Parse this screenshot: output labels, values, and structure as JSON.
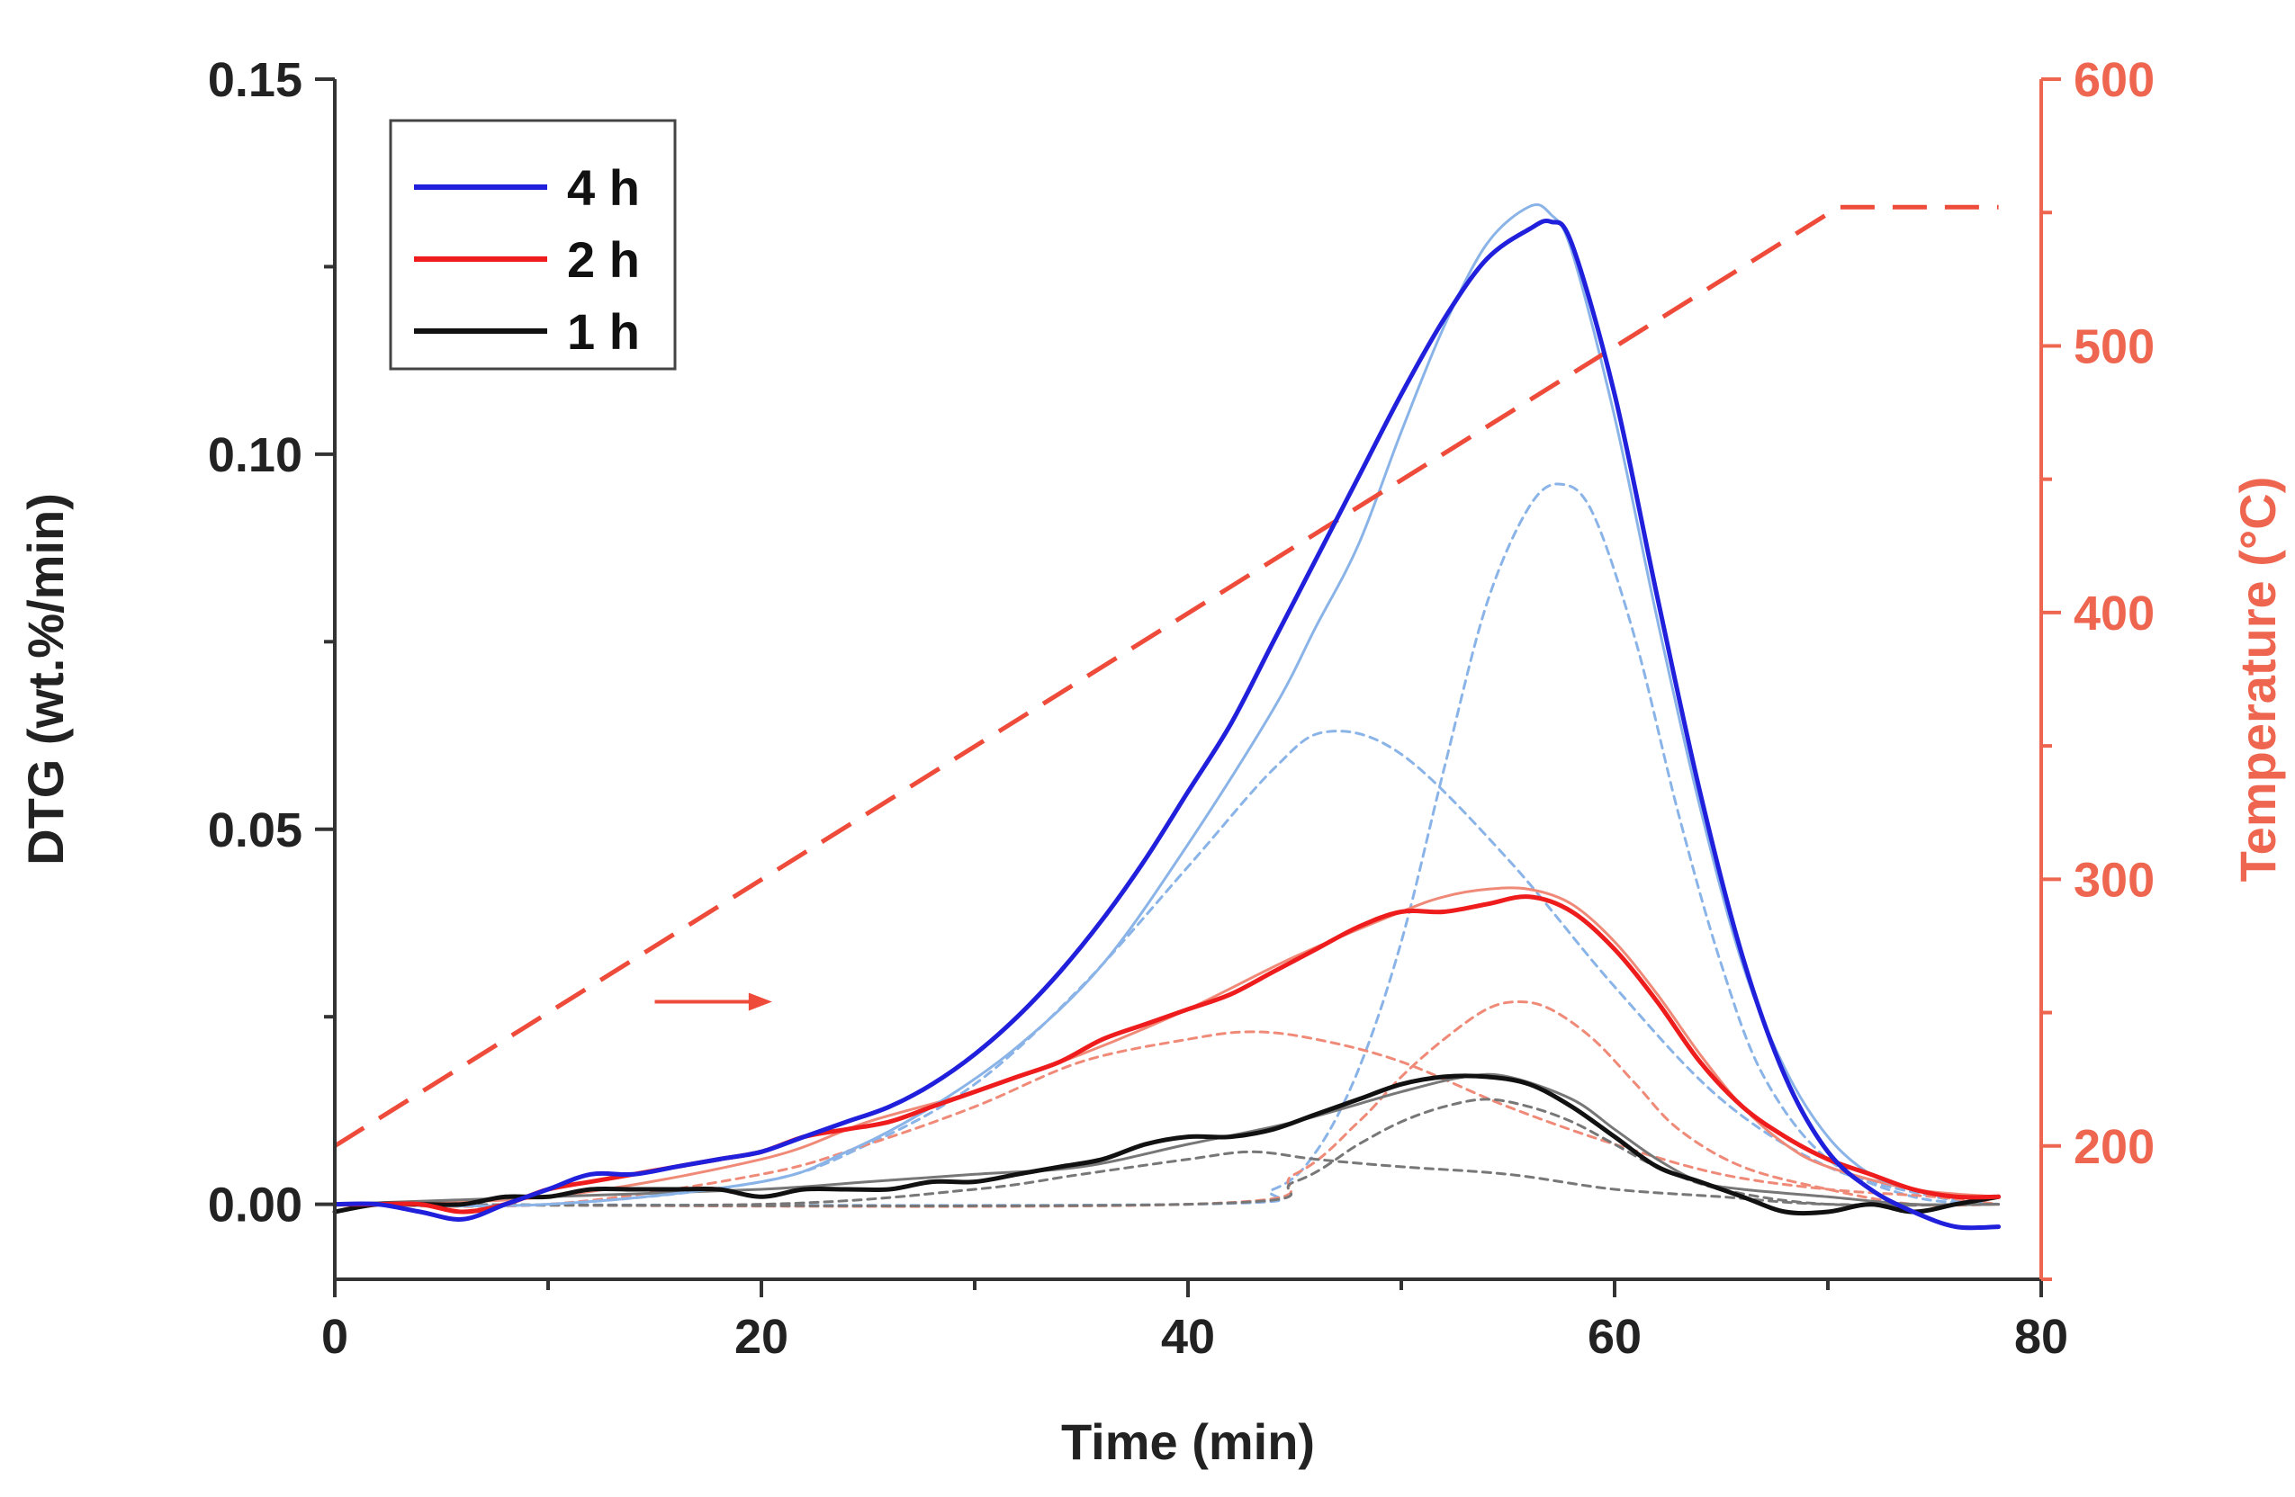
{
  "chart_data": {
    "type": "line",
    "xlabel": "Time (min)",
    "ylabel": "DTG (wt.%/min)",
    "y2label": "Temperature (°C)",
    "xlim": [
      0,
      80
    ],
    "ylim": [
      -0.01,
      0.15
    ],
    "y2lim": [
      150,
      600
    ],
    "x_ticks": [
      0,
      20,
      40,
      60,
      80
    ],
    "y_ticks": [
      0.0,
      0.05,
      0.1,
      0.15
    ],
    "y_tick_labels": [
      "0.00",
      "0.05",
      "0.10",
      "0.15"
    ],
    "y2_ticks": [
      200,
      300,
      400,
      500,
      600
    ],
    "y2_tick_labels": [
      "200",
      "300",
      "400",
      "500",
      "600"
    ],
    "legend": {
      "position": "top-left",
      "entries": [
        {
          "label": "4 h",
          "color": "#1f1fdc"
        },
        {
          "label": "2 h",
          "color": "#ee1c1c"
        },
        {
          "label": "1 h",
          "color": "#111111"
        }
      ]
    },
    "colors": {
      "blue": "#1f1fdc",
      "red": "#ee1c1c",
      "black": "#111111",
      "blue_fit": "#8ab4e8",
      "red_fit": "#f08a78",
      "black_fit": "#777777",
      "temp": "#ee4b3a",
      "axis": "#333333",
      "axis2": "#ee6650"
    },
    "series": [
      {
        "name": "4 h",
        "axis": "left",
        "style": "solid",
        "x": [
          0,
          2,
          4,
          6,
          8,
          10,
          12,
          14,
          16,
          18,
          20,
          22,
          24,
          26,
          28,
          30,
          32,
          34,
          36,
          38,
          40,
          42,
          44,
          46,
          48,
          50,
          52,
          54,
          56,
          57,
          58,
          60,
          62,
          64,
          66,
          68,
          70,
          72,
          74,
          76,
          78
        ],
        "y": [
          0.0,
          0.0,
          -0.001,
          -0.002,
          0.0,
          0.002,
          0.004,
          0.004,
          0.005,
          0.006,
          0.007,
          0.009,
          0.011,
          0.013,
          0.016,
          0.02,
          0.025,
          0.031,
          0.038,
          0.046,
          0.055,
          0.064,
          0.075,
          0.086,
          0.097,
          0.108,
          0.118,
          0.126,
          0.13,
          0.131,
          0.128,
          0.108,
          0.081,
          0.055,
          0.033,
          0.017,
          0.007,
          0.002,
          -0.001,
          -0.003,
          -0.003
        ]
      },
      {
        "name": "2 h",
        "axis": "left",
        "style": "solid",
        "x": [
          0,
          2,
          4,
          6,
          8,
          10,
          12,
          14,
          16,
          18,
          20,
          22,
          24,
          26,
          28,
          30,
          32,
          34,
          36,
          38,
          40,
          42,
          44,
          46,
          48,
          50,
          52,
          54,
          56,
          58,
          60,
          62,
          64,
          66,
          68,
          70,
          72,
          74,
          76,
          78
        ],
        "y": [
          0.0,
          0.0,
          0.0,
          -0.001,
          0.0,
          0.002,
          0.003,
          0.004,
          0.005,
          0.006,
          0.007,
          0.009,
          0.01,
          0.011,
          0.013,
          0.015,
          0.017,
          0.019,
          0.022,
          0.024,
          0.026,
          0.028,
          0.031,
          0.034,
          0.037,
          0.039,
          0.039,
          0.04,
          0.041,
          0.039,
          0.034,
          0.027,
          0.019,
          0.013,
          0.009,
          0.006,
          0.004,
          0.002,
          0.001,
          0.001
        ]
      },
      {
        "name": "1 h",
        "axis": "left",
        "style": "solid",
        "x": [
          0,
          2,
          4,
          6,
          8,
          10,
          12,
          14,
          16,
          18,
          20,
          22,
          24,
          26,
          28,
          30,
          32,
          34,
          36,
          38,
          40,
          42,
          44,
          46,
          48,
          50,
          52,
          54,
          56,
          58,
          60,
          62,
          64,
          66,
          68,
          70,
          72,
          74,
          76,
          78
        ],
        "y": [
          -0.001,
          0.0,
          0.0,
          0.0,
          0.001,
          0.001,
          0.002,
          0.002,
          0.002,
          0.002,
          0.001,
          0.002,
          0.002,
          0.002,
          0.003,
          0.003,
          0.004,
          0.005,
          0.006,
          0.008,
          0.009,
          0.009,
          0.01,
          0.012,
          0.014,
          0.016,
          0.017,
          0.017,
          0.016,
          0.013,
          0.009,
          0.005,
          0.003,
          0.001,
          -0.001,
          -0.001,
          0.0,
          -0.001,
          0.0,
          0.001
        ]
      },
      {
        "name": "4 h fit",
        "axis": "left",
        "style": "fit-blue",
        "x": [
          0,
          10,
          20,
          24,
          28,
          32,
          36,
          40,
          44,
          46,
          48,
          50,
          52,
          54,
          56,
          57,
          58,
          60,
          62,
          64,
          66,
          68,
          70,
          72,
          74,
          76,
          78
        ],
        "y": [
          0.0,
          0.0,
          0.003,
          0.007,
          0.013,
          0.021,
          0.032,
          0.048,
          0.066,
          0.077,
          0.088,
          0.103,
          0.117,
          0.128,
          0.133,
          0.132,
          0.127,
          0.105,
          0.078,
          0.053,
          0.032,
          0.018,
          0.009,
          0.004,
          0.002,
          0.001,
          0.001
        ]
      },
      {
        "name": "2 h fit",
        "axis": "left",
        "style": "fit-red",
        "x": [
          0,
          10,
          20,
          25,
          30,
          35,
          40,
          45,
          50,
          52,
          54,
          56,
          58,
          60,
          62,
          64,
          66,
          68,
          70,
          74,
          78
        ],
        "y": [
          0.0,
          0.001,
          0.006,
          0.011,
          0.015,
          0.02,
          0.026,
          0.033,
          0.039,
          0.041,
          0.042,
          0.042,
          0.04,
          0.035,
          0.028,
          0.02,
          0.013,
          0.008,
          0.005,
          0.002,
          0.001
        ]
      },
      {
        "name": "1 h fit",
        "axis": "left",
        "style": "fit-black",
        "x": [
          0,
          10,
          20,
          25,
          30,
          35,
          40,
          45,
          50,
          53,
          55,
          58,
          60,
          62,
          64,
          66,
          70,
          74,
          78
        ],
        "y": [
          0.0,
          0.001,
          0.002,
          0.003,
          0.004,
          0.005,
          0.008,
          0.011,
          0.015,
          0.017,
          0.017,
          0.014,
          0.01,
          0.006,
          0.003,
          0.002,
          0.001,
          0.0,
          0.0
        ]
      },
      {
        "name": "4 h component 1",
        "axis": "left",
        "style": "dot-blue",
        "x": [
          0,
          10,
          20,
          25,
          30,
          35,
          40,
          44,
          46.5,
          50,
          55,
          60,
          65,
          70,
          75,
          78
        ],
        "y": [
          0.0,
          0.0,
          0.003,
          0.008,
          0.016,
          0.029,
          0.045,
          0.058,
          0.063,
          0.06,
          0.046,
          0.029,
          0.014,
          0.005,
          0.001,
          0.0
        ]
      },
      {
        "name": "4 h component 2",
        "axis": "left",
        "style": "dot-blue",
        "x": [
          0,
          40,
          44,
          46,
          48,
          50,
          52,
          54,
          56,
          57.5,
          59,
          61,
          63,
          65,
          67,
          70,
          74,
          78
        ],
        "y": [
          0.0,
          0.0,
          0.002,
          0.007,
          0.018,
          0.035,
          0.058,
          0.08,
          0.093,
          0.096,
          0.092,
          0.075,
          0.052,
          0.032,
          0.017,
          0.006,
          0.001,
          0.0
        ]
      },
      {
        "name": "2 h component 1",
        "axis": "left",
        "style": "dot-red",
        "x": [
          0,
          10,
          20,
          25,
          30,
          35,
          40,
          43,
          46,
          50,
          55,
          60,
          65,
          70,
          75,
          78
        ],
        "y": [
          0.0,
          0.0,
          0.004,
          0.008,
          0.013,
          0.019,
          0.022,
          0.023,
          0.022,
          0.019,
          0.013,
          0.008,
          0.004,
          0.002,
          0.001,
          0.0
        ]
      },
      {
        "name": "2 h component 2",
        "axis": "left",
        "style": "dot-red",
        "x": [
          0,
          40,
          45,
          48,
          50,
          52,
          54,
          55.5,
          57,
          59,
          61,
          63,
          66,
          70,
          74,
          78
        ],
        "y": [
          0.0,
          0.0,
          0.004,
          0.011,
          0.017,
          0.022,
          0.026,
          0.027,
          0.026,
          0.022,
          0.016,
          0.01,
          0.005,
          0.002,
          0.0,
          0.0
        ]
      },
      {
        "name": "1 h component 1",
        "axis": "left",
        "style": "dot-black",
        "x": [
          0,
          20,
          30,
          35,
          40,
          43,
          46,
          50,
          55,
          60,
          65,
          70,
          78
        ],
        "y": [
          0.0,
          0.0,
          0.002,
          0.004,
          0.006,
          0.007,
          0.006,
          0.005,
          0.004,
          0.002,
          0.001,
          0.0,
          0.0
        ]
      },
      {
        "name": "1 h component 2",
        "axis": "left",
        "style": "dot-black",
        "x": [
          0,
          40,
          45,
          48,
          50,
          52,
          54,
          56,
          58,
          60,
          62,
          65,
          70,
          78
        ],
        "y": [
          0.0,
          0.0,
          0.003,
          0.008,
          0.011,
          0.013,
          0.014,
          0.013,
          0.011,
          0.008,
          0.005,
          0.002,
          0.0,
          0.0
        ]
      },
      {
        "name": "Temperature",
        "axis": "right",
        "style": "dash-temp",
        "x": [
          0,
          70.5,
          72,
          78
        ],
        "y": [
          200,
          552,
          552,
          552
        ]
      }
    ],
    "annotations": [
      {
        "type": "arrow",
        "direction": "right",
        "target_axis": "right",
        "x_from": 15,
        "x_to": 20.5,
        "y_value": 0.027
      }
    ]
  }
}
